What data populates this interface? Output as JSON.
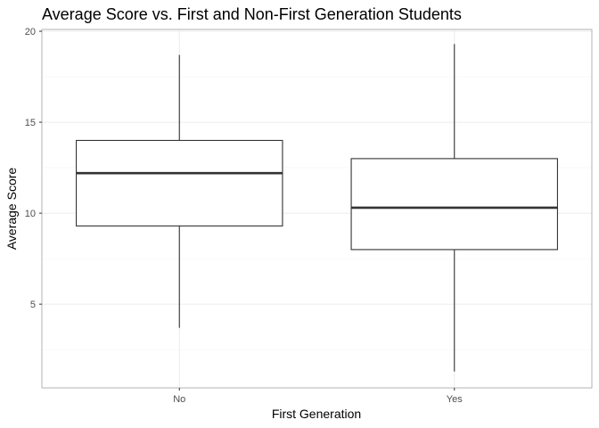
{
  "chart_data": {
    "type": "box",
    "title": "Average Score vs. First and Non-First Generation Students",
    "xlabel": "First Generation",
    "ylabel": "Average Score",
    "ylim": [
      0.4,
      20.1
    ],
    "yticks": [
      5,
      10,
      15,
      20
    ],
    "grid": true,
    "legend": "none",
    "categories": [
      "No",
      "Yes"
    ],
    "boxes": [
      {
        "category": "No",
        "whisker_low": 3.7,
        "q1": 9.3,
        "median": 12.2,
        "q3": 14.0,
        "whisker_high": 18.7
      },
      {
        "category": "Yes",
        "whisker_low": 1.3,
        "q1": 8.0,
        "median": 10.3,
        "q3": 13.0,
        "whisker_high": 19.3
      }
    ],
    "colors": {
      "panel_border": "#b3b3b3",
      "grid_major": "#ebebeb",
      "grid_minor": "#f5f5f5",
      "box_stroke": "#333333",
      "box_fill": "#ffffff",
      "tick_label": "#4d4d4d"
    }
  }
}
